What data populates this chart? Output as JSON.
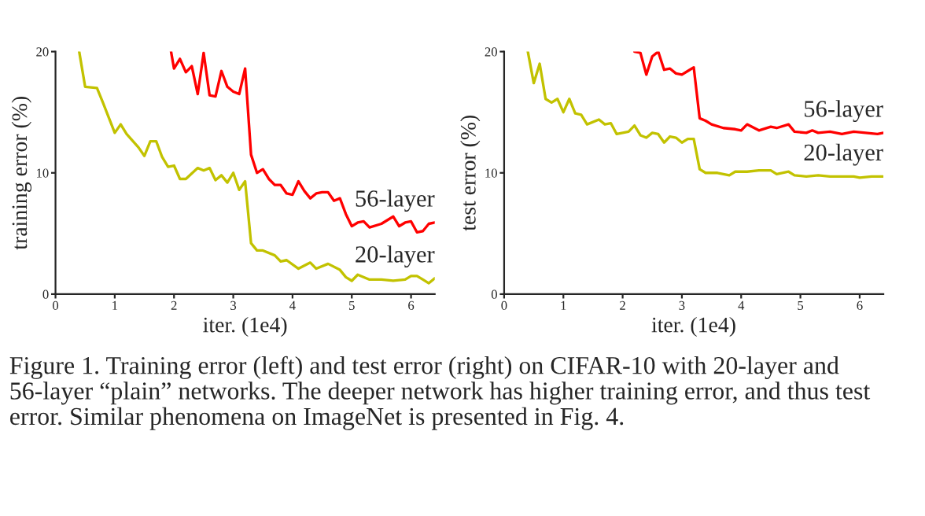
{
  "chart_data": [
    {
      "type": "line",
      "ylabel": "training error (%)",
      "xlabel": "iter. (1e4)",
      "xlim": [
        0,
        6.4
      ],
      "ylim": [
        0,
        20
      ],
      "xticks": [
        0,
        1,
        2,
        3,
        4,
        5,
        6
      ],
      "yticks": [
        0,
        10,
        20
      ],
      "grid": false,
      "legend": false,
      "marker": "none",
      "line_style": "solid",
      "series": [
        {
          "name": "56-layer",
          "color": "#ff0000",
          "x": [
            1.95,
            2.0,
            2.1,
            2.2,
            2.3,
            2.4,
            2.5,
            2.6,
            2.7,
            2.8,
            2.9,
            3.0,
            3.1,
            3.2,
            3.3,
            3.4,
            3.5,
            3.6,
            3.7,
            3.8,
            3.9,
            4.0,
            4.1,
            4.2,
            4.3,
            4.4,
            4.5,
            4.6,
            4.7,
            4.8,
            4.9,
            5.0,
            5.1,
            5.2,
            5.3,
            5.5,
            5.7,
            5.8,
            5.9,
            6.0,
            6.1,
            6.2,
            6.3,
            6.4
          ],
          "values": [
            20,
            18.6,
            19.4,
            18.3,
            18.8,
            16.5,
            19.9,
            16.4,
            16.3,
            18.4,
            17.1,
            16.7,
            16.5,
            18.6,
            11.5,
            10.0,
            10.3,
            9.5,
            9.0,
            9.0,
            8.3,
            8.2,
            9.3,
            8.5,
            7.9,
            8.3,
            8.4,
            8.4,
            7.7,
            7.9,
            6.6,
            5.6,
            5.9,
            6.0,
            5.5,
            5.8,
            6.4,
            5.6,
            5.9,
            6.0,
            5.1,
            5.2,
            5.8,
            5.9
          ]
        },
        {
          "name": "20-layer",
          "color": "#c2c200",
          "x": [
            0.4,
            0.5,
            0.7,
            0.8,
            1.0,
            1.1,
            1.2,
            1.4,
            1.5,
            1.6,
            1.7,
            1.8,
            1.9,
            2.0,
            2.1,
            2.2,
            2.4,
            2.5,
            2.6,
            2.7,
            2.8,
            2.9,
            3.0,
            3.1,
            3.2,
            3.3,
            3.4,
            3.5,
            3.7,
            3.8,
            3.9,
            4.1,
            4.3,
            4.4,
            4.6,
            4.8,
            4.9,
            5.0,
            5.1,
            5.3,
            5.5,
            5.7,
            5.9,
            6.0,
            6.1,
            6.2,
            6.3,
            6.4
          ],
          "values": [
            20,
            17.1,
            17.0,
            15.8,
            13.3,
            14.0,
            13.2,
            12.1,
            11.4,
            12.6,
            12.6,
            11.3,
            10.5,
            10.6,
            9.5,
            9.5,
            10.4,
            10.2,
            10.4,
            9.4,
            9.8,
            9.2,
            10.0,
            8.6,
            9.3,
            4.2,
            3.6,
            3.6,
            3.2,
            2.7,
            2.8,
            2.1,
            2.6,
            2.1,
            2.5,
            2.0,
            1.4,
            1.1,
            1.6,
            1.2,
            1.2,
            1.1,
            1.2,
            1.5,
            1.5,
            1.2,
            0.9,
            1.3
          ]
        }
      ]
    },
    {
      "type": "line",
      "ylabel": "test error (%)",
      "xlabel": "iter. (1e4)",
      "xlim": [
        0,
        6.4
      ],
      "ylim": [
        0,
        20
      ],
      "xticks": [
        0,
        1,
        2,
        3,
        4,
        5,
        6
      ],
      "yticks": [
        0,
        10,
        20
      ],
      "grid": false,
      "legend": false,
      "marker": "none",
      "line_style": "solid",
      "annotations": [
        "Figure 1. Training error (left) and test error (right) on CIFAR-10 with 20-layer and 56-layer “plain” networks. The deeper network has higher training error, and thus test error. Similar phenomena on ImageNet is presented in Fig. 4."
      ],
      "series": [
        {
          "name": "56-layer",
          "color": "#ff0000",
          "x": [
            2.2,
            2.3,
            2.4,
            2.5,
            2.6,
            2.7,
            2.8,
            2.9,
            3.0,
            3.1,
            3.2,
            3.3,
            3.4,
            3.5,
            3.7,
            3.9,
            4.0,
            4.1,
            4.3,
            4.5,
            4.6,
            4.8,
            4.9,
            5.1,
            5.2,
            5.3,
            5.5,
            5.7,
            5.9,
            6.1,
            6.3,
            6.4
          ],
          "values": [
            20,
            19.9,
            18.1,
            19.6,
            20.0,
            18.5,
            18.6,
            18.2,
            18.1,
            18.4,
            18.7,
            14.5,
            14.3,
            14.0,
            13.7,
            13.6,
            13.5,
            14.0,
            13.5,
            13.8,
            13.7,
            14.0,
            13.4,
            13.3,
            13.5,
            13.3,
            13.4,
            13.2,
            13.4,
            13.3,
            13.2,
            13.3
          ]
        },
        {
          "name": "20-layer",
          "color": "#c2c200",
          "x": [
            0.4,
            0.5,
            0.6,
            0.7,
            0.8,
            0.9,
            1.0,
            1.1,
            1.2,
            1.3,
            1.4,
            1.6,
            1.7,
            1.8,
            1.9,
            2.1,
            2.2,
            2.3,
            2.4,
            2.5,
            2.6,
            2.7,
            2.8,
            2.9,
            3.0,
            3.1,
            3.2,
            3.3,
            3.4,
            3.6,
            3.8,
            3.9,
            4.1,
            4.3,
            4.5,
            4.6,
            4.8,
            4.9,
            5.1,
            5.3,
            5.5,
            5.7,
            5.9,
            6.0,
            6.2,
            6.4
          ],
          "values": [
            20,
            17.4,
            19.0,
            16.1,
            15.8,
            16.1,
            15.0,
            16.1,
            14.9,
            14.8,
            14.0,
            14.4,
            14.0,
            14.1,
            13.2,
            13.4,
            13.9,
            13.1,
            12.9,
            13.3,
            13.2,
            12.5,
            13.0,
            12.9,
            12.5,
            12.8,
            12.8,
            10.3,
            10.0,
            10.0,
            9.8,
            10.1,
            10.1,
            10.2,
            10.2,
            9.9,
            10.1,
            9.8,
            9.7,
            9.8,
            9.7,
            9.7,
            9.7,
            9.6,
            9.7,
            9.7
          ]
        }
      ]
    }
  ]
}
